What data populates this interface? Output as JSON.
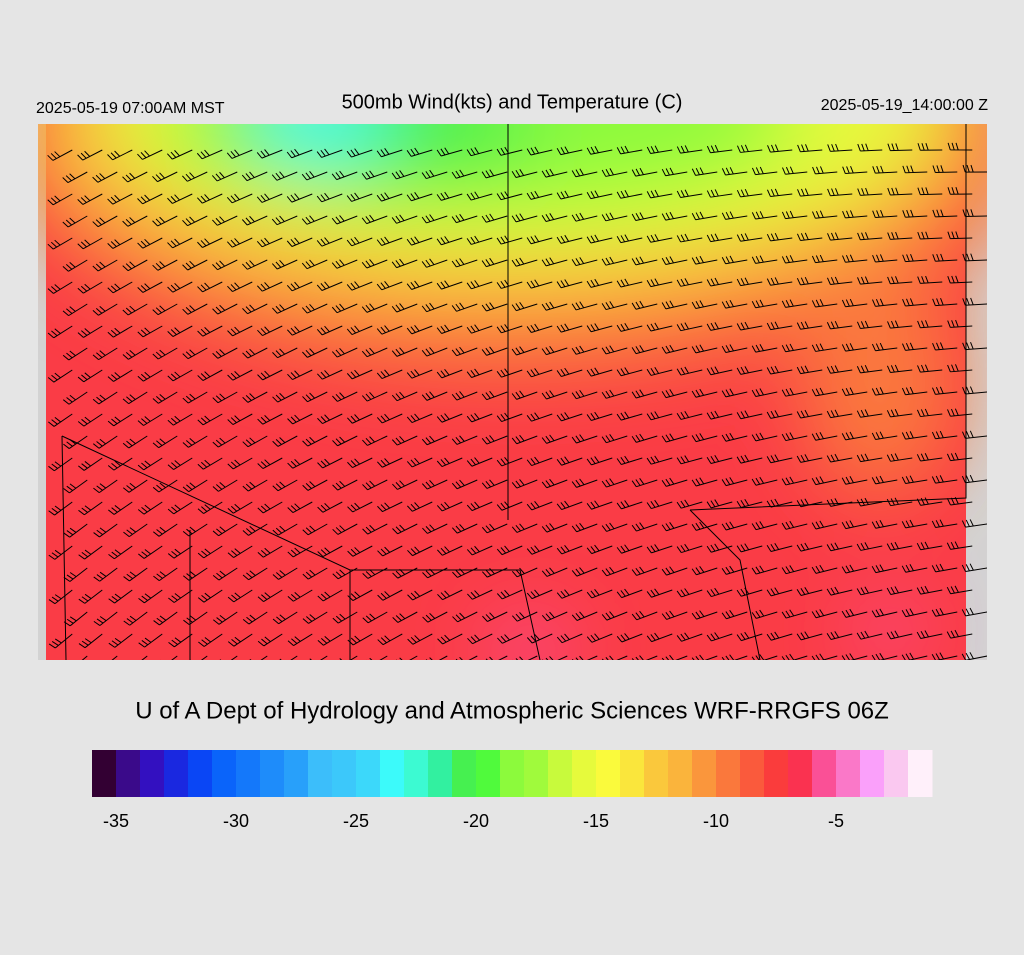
{
  "header": {
    "left_label": "2025-05-19 07:00AM MST",
    "title": "500mb Wind(kts) and Temperature (C)",
    "right_label": "2025-05-19_14:00:00 Z"
  },
  "footer": {
    "credit": "U of A Dept of Hydrology and Atmospheric Sciences WRF-RRGFS 06Z"
  },
  "colorbar": {
    "lim": [
      -36,
      -1
    ],
    "colors": [
      "#330033",
      "#3a0a8a",
      "#3310c0",
      "#1a28e0",
      "#0a46f5",
      "#0a64fa",
      "#1478fa",
      "#1e8cfa",
      "#28a0fa",
      "#3cbefa",
      "#3cc8fa",
      "#3cd8fa",
      "#3cfafa",
      "#3cfad2",
      "#32f0a0",
      "#46f050",
      "#50fa3c",
      "#8cfa3c",
      "#a0fa3c",
      "#c8fa3c",
      "#e6fa3c",
      "#fafa3c",
      "#fae63c",
      "#fac83c",
      "#fab43c",
      "#fa963c",
      "#fa783c",
      "#fa5a3c",
      "#fa3c3c",
      "#fa3250",
      "#fa5096",
      "#fa78c8",
      "#faa0fa",
      "#fac8f0",
      "#fff0fa"
    ],
    "ticks": [
      -35,
      -30,
      -25,
      -20,
      -15,
      -10,
      -5
    ]
  }
}
